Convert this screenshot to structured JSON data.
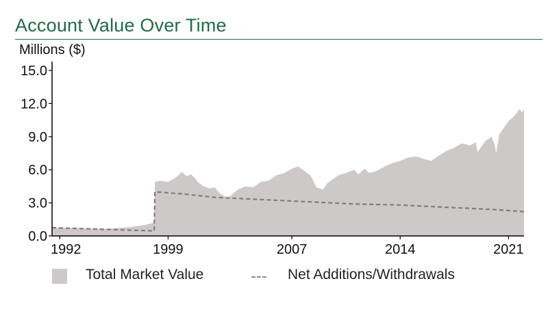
{
  "title": "Account Value Over Time",
  "units_label": "Millions ($)",
  "legend": {
    "market_label": "Total Market Value",
    "net_label": "Net Additions/Withdrawals"
  },
  "colors": {
    "title": "#1f6b43",
    "area": "#cdc9c8",
    "net_line": "#8a8a8a",
    "axis": "#000000"
  },
  "chart_data": {
    "type": "area",
    "title": "Account Value Over Time",
    "xlabel": "",
    "ylabel": "Millions ($)",
    "xlim": [
      1991.5,
      2022.0
    ],
    "ylim": [
      0,
      15
    ],
    "x_ticks": [
      1992,
      1999,
      2007,
      2014,
      2021
    ],
    "x_tick_labels": [
      "1992",
      "1999",
      "2007",
      "2014",
      "2021"
    ],
    "y_ticks": [
      0,
      3,
      6,
      9,
      12,
      15
    ],
    "y_tick_labels": [
      "0.0",
      "3.0",
      "6.0",
      "9.0",
      "12.0",
      "15.0"
    ],
    "grid": false,
    "legend_position": "bottom",
    "series": [
      {
        "name": "Total Market Value",
        "style": "area",
        "x": [
          1991.5,
          1993,
          1995,
          1996.5,
          1997.5,
          1998.1,
          1998.15,
          1998.5,
          1999.0,
          1999.5,
          1999.9,
          2000.2,
          2000.5,
          2001.0,
          2001.3,
          2001.7,
          2002.0,
          2002.4,
          2002.8,
          2003.0,
          2003.5,
          2004.0,
          2004.5,
          2005.0,
          2005.5,
          2006.0,
          2006.5,
          2007.0,
          2007.4,
          2007.8,
          2008.2,
          2008.6,
          2009.0,
          2009.3,
          2009.6,
          2010.0,
          2010.5,
          2011.0,
          2011.3,
          2011.7,
          2012.0,
          2012.5,
          2013.0,
          2013.5,
          2014.0,
          2014.5,
          2015.0,
          2015.5,
          2016.0,
          2016.5,
          2017.0,
          2017.5,
          2018.0,
          2018.5,
          2018.9,
          2019.0,
          2019.5,
          2019.9,
          2020.1,
          2020.2,
          2020.4,
          2020.8,
          2021.0,
          2021.4,
          2021.7,
          2021.9,
          2022.0
        ],
        "values": [
          0.75,
          0.7,
          0.65,
          0.8,
          1.0,
          1.2,
          4.9,
          5.0,
          4.9,
          5.3,
          5.8,
          5.4,
          5.6,
          4.8,
          4.5,
          4.3,
          4.4,
          3.8,
          3.5,
          3.6,
          4.2,
          4.5,
          4.4,
          4.9,
          5.0,
          5.5,
          5.7,
          6.1,
          6.3,
          5.9,
          5.5,
          4.4,
          4.2,
          4.8,
          5.1,
          5.5,
          5.7,
          6.0,
          5.6,
          6.1,
          5.7,
          5.9,
          6.3,
          6.6,
          6.8,
          7.1,
          7.2,
          7.0,
          6.8,
          7.3,
          7.7,
          8.0,
          8.4,
          8.2,
          8.5,
          7.6,
          8.6,
          9.0,
          8.3,
          7.5,
          9.2,
          10.0,
          10.4,
          10.9,
          11.5,
          11.2,
          11.5
        ]
      },
      {
        "name": "Net Additions/Withdrawals",
        "style": "dashed-line",
        "x": [
          1991.5,
          1998.1,
          1998.15,
          2000.0,
          2002.0,
          2005.0,
          2008.0,
          2011.0,
          2014.0,
          2017.0,
          2020.0,
          2022.0
        ],
        "values": [
          0.75,
          0.45,
          4.0,
          3.8,
          3.5,
          3.3,
          3.1,
          2.9,
          2.8,
          2.6,
          2.4,
          2.2
        ]
      }
    ]
  }
}
